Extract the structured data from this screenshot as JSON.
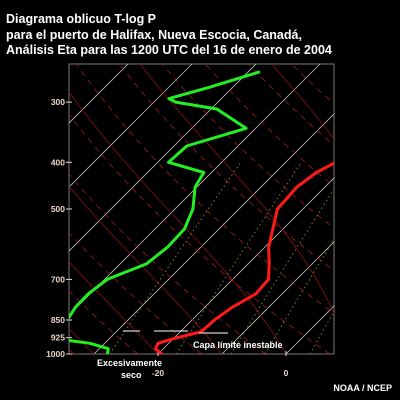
{
  "title": {
    "line1": "Diagrama oblicuo T-log P",
    "line2": "para el puerto de Halifax, Nueva Escocia, Canadá,",
    "line3": "Análisis Eta para las 1200 UTC del 16 de enero de 2004"
  },
  "credit": "NOAA / NCEP",
  "colors": {
    "temperature": "#ff1a1a",
    "dewpoint": "#22ee22",
    "isotherm": "#bdbdbd",
    "dry_adiabat": "#8b1a1a",
    "moist_adiabat": "#7a1010",
    "mixing_ratio": "#8a8a1a"
  },
  "chart_data": {
    "type": "line",
    "y_scale": "log",
    "ylim": [
      1000,
      250
    ],
    "xlim": [
      -26,
      1
    ],
    "pressure_ticks": [
      "300",
      "400",
      "500",
      "700",
      "850",
      "925",
      "1000"
    ],
    "temperature_ticks": [
      "-20",
      "0"
    ],
    "series": [
      {
        "key": "temperature",
        "points": [
          {
            "p": 1000,
            "t": -19.4
          },
          {
            "p": 975,
            "t": -21.2
          },
          {
            "p": 950,
            "t": -21.7
          },
          {
            "p": 925,
            "t": -19.6
          },
          {
            "p": 900,
            "t": -16.8
          },
          {
            "p": 875,
            "t": -16.6
          },
          {
            "p": 850,
            "t": -16.5
          },
          {
            "p": 800,
            "t": -15.7
          },
          {
            "p": 750,
            "t": -14.1
          },
          {
            "p": 700,
            "t": -14.4
          },
          {
            "p": 650,
            "t": -16.7
          },
          {
            "p": 600,
            "t": -19.4
          },
          {
            "p": 550,
            "t": -21.6
          },
          {
            "p": 500,
            "t": -24.0
          },
          {
            "p": 450,
            "t": -24.4
          },
          {
            "p": 420,
            "t": -23.6
          },
          {
            "p": 400,
            "t": -22.2
          },
          {
            "p": 370,
            "t": -19.5
          },
          {
            "p": 340,
            "t": -16.6
          },
          {
            "p": 310,
            "t": -13.2
          },
          {
            "p": 280,
            "t": -9.9
          },
          {
            "p": 260,
            "t": -8.6
          }
        ]
      },
      {
        "key": "dewpoint",
        "points": [
          {
            "p": 1000,
            "t": -27.9
          },
          {
            "p": 975,
            "t": -28.6
          },
          {
            "p": 950,
            "t": -32.3
          },
          {
            "p": 925,
            "t": -39.7
          },
          {
            "p": 900,
            "t": -40.6
          },
          {
            "p": 875,
            "t": -40.0
          },
          {
            "p": 850,
            "t": -39.5
          },
          {
            "p": 800,
            "t": -40.2
          },
          {
            "p": 750,
            "t": -40.3
          },
          {
            "p": 700,
            "t": -39.6
          },
          {
            "p": 650,
            "t": -35.9
          },
          {
            "p": 600,
            "t": -35.2
          },
          {
            "p": 550,
            "t": -35.4
          },
          {
            "p": 500,
            "t": -37.2
          },
          {
            "p": 450,
            "t": -40.3
          },
          {
            "p": 420,
            "t": -41.2
          },
          {
            "p": 400,
            "t": -48.3
          },
          {
            "p": 370,
            "t": -48.0
          },
          {
            "p": 340,
            "t": -41.5
          },
          {
            "p": 310,
            "t": -49.1
          },
          {
            "p": 300,
            "t": -56.6
          },
          {
            "p": 295,
            "t": -58.2
          },
          {
            "p": 280,
            "t": -53.8
          },
          {
            "p": 260,
            "t": -48.3
          }
        ]
      }
    ],
    "annotations": {
      "dry_label_line1": "Excesivamente",
      "dry_label_line2": "seco",
      "unstable_layer": "Capa límite inestable"
    }
  }
}
